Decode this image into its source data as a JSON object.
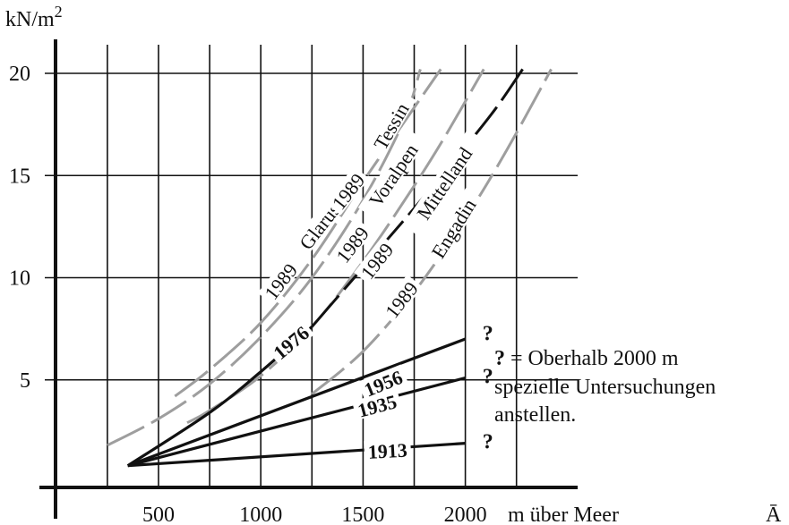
{
  "chart_data": {
    "type": "line",
    "ylabel": "kN/m",
    "ylabel_sup": "2",
    "xlabel": "m über Meer",
    "corner_glyph": "Ā",
    "xlim": [
      -30,
      2340
    ],
    "ylim": [
      -0.8,
      21.4
    ],
    "x_ticks": [
      500,
      1000,
      1500,
      2000
    ],
    "x_tick_labels": [
      "500",
      "1000",
      "1500",
      "2000"
    ],
    "y_ticks": [
      5,
      10,
      15,
      20
    ],
    "y_tick_labels": [
      "5",
      "10",
      "15",
      "20"
    ],
    "grid_x": [
      250,
      500,
      750,
      1000,
      1250,
      1500,
      1750,
      2000,
      2250
    ],
    "grid": true,
    "annotation": {
      "symbol": "?",
      "line1": " = Oberhalb 2000 m",
      "line2": "spezielle Untersuchungen",
      "line3": "anstellen."
    },
    "series": [
      {
        "name": "1989 Glarus",
        "year": "1989",
        "region": "Glarus",
        "color": "#9e9e9e",
        "style": "dashed",
        "x": [
          250,
          500,
          750,
          1000,
          1250,
          1500,
          1700,
          1780
        ],
        "y": [
          1.8,
          3.1,
          4.8,
          7.1,
          10.0,
          13.8,
          17.7,
          20.2
        ]
      },
      {
        "name": "1989 Tessin",
        "year": "1989",
        "region": "Tessin",
        "color": "#9e9e9e",
        "style": "dashed",
        "x": [
          580,
          750,
          1000,
          1250,
          1500,
          1700,
          1880
        ],
        "y": [
          4.2,
          5.5,
          7.8,
          10.9,
          14.7,
          17.6,
          20.2
        ]
      },
      {
        "name": "1989 Voralpen",
        "year": "1989",
        "region": "Voralpen",
        "color": "#9e9e9e",
        "style": "dashed",
        "x": [
          640,
          750,
          1000,
          1250,
          1500,
          1750,
          1900,
          2090
        ],
        "y": [
          2.9,
          3.5,
          5.2,
          7.6,
          10.8,
          14.5,
          16.9,
          20.2
        ]
      },
      {
        "name": "1989 Mittelland",
        "year": "1989",
        "region": "Mittelland",
        "color": "#111111",
        "style": "dashed",
        "x": [
          1250,
          1500,
          1750,
          2000,
          2150,
          2280
        ],
        "y": [
          7.6,
          10.5,
          13.4,
          16.4,
          18.3,
          20.2
        ]
      },
      {
        "name": "1976",
        "year": "1976",
        "region": "",
        "color": "#111111",
        "style": "solid",
        "x": [
          350,
          750,
          1000,
          1250
        ],
        "y": [
          0.8,
          3.4,
          5.4,
          7.6
        ]
      },
      {
        "name": "1989 Engadin",
        "year": "1989",
        "region": "Engadin",
        "color": "#9e9e9e",
        "style": "dashed",
        "x": [
          1250,
          1500,
          1750,
          2000,
          2200,
          2420
        ],
        "y": [
          4.3,
          6.4,
          9.3,
          12.9,
          16.2,
          20.2
        ]
      },
      {
        "name": "1956",
        "year": "1956",
        "region": "",
        "color": "#111111",
        "style": "solid",
        "x": [
          350,
          2000
        ],
        "y": [
          0.8,
          7.0
        ]
      },
      {
        "name": "1935",
        "year": "1935",
        "region": "",
        "color": "#111111",
        "style": "solid",
        "x": [
          350,
          2000
        ],
        "y": [
          0.8,
          5.1
        ]
      },
      {
        "name": "1913",
        "year": "1913",
        "region": "",
        "color": "#111111",
        "style": "solid",
        "x": [
          350,
          2000
        ],
        "y": [
          0.8,
          1.9
        ]
      }
    ]
  }
}
